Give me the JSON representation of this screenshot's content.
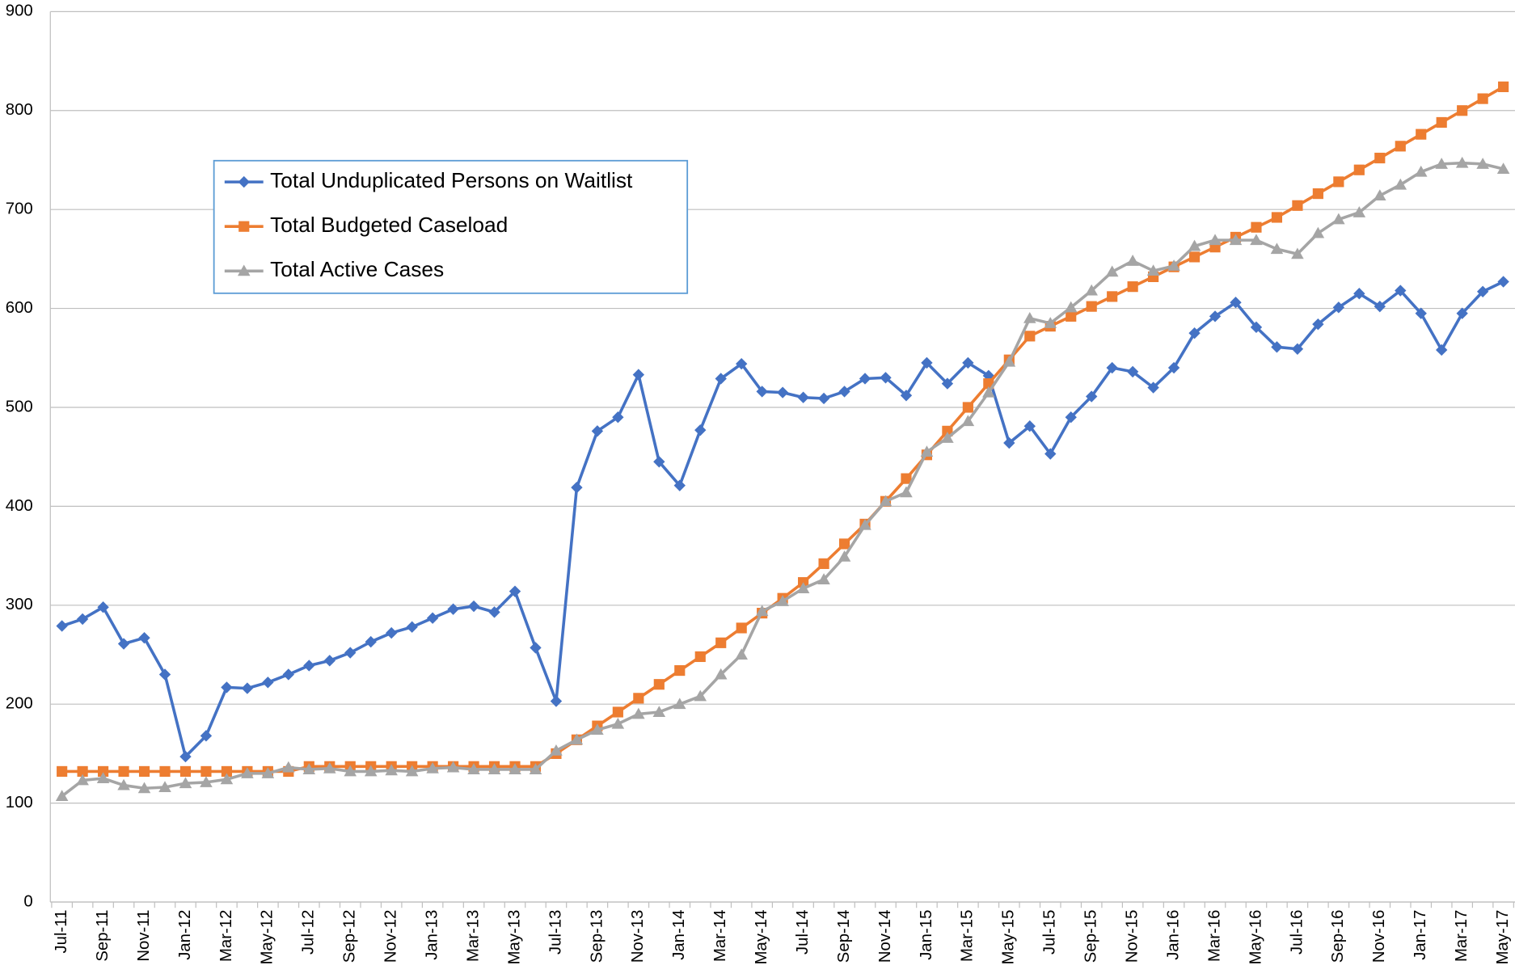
{
  "chart_data": {
    "type": "line",
    "categories": [
      "Jul-11",
      null,
      "Sep-11",
      null,
      "Nov-11",
      null,
      "Jan-12",
      null,
      "Mar-12",
      null,
      "May-12",
      null,
      "Jul-12",
      null,
      "Sep-12",
      null,
      "Nov-12",
      null,
      "Jan-13",
      null,
      "Mar-13",
      null,
      "May-13",
      null,
      "Jul-13",
      null,
      "Sep-13",
      null,
      "Nov-13",
      null,
      "Jan-14",
      null,
      "Mar-14",
      null,
      "May-14",
      null,
      "Jul-14",
      null,
      "Sep-14",
      null,
      "Nov-14",
      null,
      "Jan-15",
      null,
      "Mar-15",
      null,
      "May-15",
      null,
      "Jul-15",
      null,
      "Sep-15",
      null,
      "Nov-15",
      null,
      "Jan-16",
      null,
      "Mar-16",
      null,
      "May-16",
      null,
      "Jul-16",
      null,
      "Sep-16",
      null,
      "Nov-16",
      null,
      "Jan-17",
      null,
      "Mar-17",
      null,
      "May-17"
    ],
    "series": [
      {
        "name": "Total Unduplicated Persons on Waitlist",
        "color": "#4472c4",
        "marker": "diamond",
        "values": [
          279,
          286,
          298,
          261,
          267,
          230,
          147,
          168,
          217,
          216,
          222,
          230,
          239,
          244,
          252,
          263,
          272,
          278,
          287,
          296,
          299,
          293,
          314,
          257,
          203,
          419,
          476,
          490,
          533,
          445,
          421,
          477,
          529,
          544,
          516,
          515,
          510,
          509,
          516,
          529,
          530,
          512,
          545,
          524,
          545,
          532,
          464,
          481,
          453,
          490,
          511,
          540,
          536,
          520,
          540,
          575,
          592,
          606,
          581,
          561,
          559,
          584,
          601,
          615,
          602,
          618,
          595,
          558,
          595,
          617,
          627
        ]
      },
      {
        "name": "Total Budgeted Caseload",
        "color": "#ed7d31",
        "marker": "square",
        "values": [
          132,
          132,
          132,
          132,
          132,
          132,
          132,
          132,
          132,
          132,
          132,
          132,
          137,
          137,
          137,
          137,
          137,
          137,
          137,
          137,
          137,
          137,
          137,
          137,
          150,
          164,
          178,
          192,
          206,
          220,
          234,
          248,
          262,
          277,
          292,
          307,
          323,
          342,
          362,
          382,
          405,
          428,
          452,
          476,
          500,
          524,
          548,
          572,
          582,
          592,
          602,
          612,
          622,
          632,
          642,
          652,
          662,
          672,
          682,
          692,
          704,
          716,
          728,
          740,
          752,
          764,
          776,
          788,
          800,
          812,
          824
        ]
      },
      {
        "name": "Total Active Cases",
        "color": "#a5a5a5",
        "marker": "triangle",
        "values": [
          107,
          123,
          125,
          118,
          115,
          116,
          120,
          121,
          124,
          130,
          130,
          136,
          134,
          135,
          132,
          132,
          133,
          132,
          135,
          136,
          134,
          134,
          134,
          134,
          153,
          164,
          174,
          180,
          190,
          192,
          200,
          208,
          230,
          250,
          294,
          304,
          317,
          326,
          349,
          381,
          405,
          414,
          455,
          469,
          486,
          515,
          546,
          590,
          585,
          601,
          618,
          637,
          648,
          638,
          643,
          663,
          669,
          669,
          669,
          660,
          655,
          676,
          690,
          697,
          714,
          725,
          738,
          746,
          747,
          746,
          741
        ]
      }
    ],
    "ylim": [
      0,
      900
    ],
    "yticks": [
      0,
      100,
      200,
      300,
      400,
      500,
      600,
      700,
      800,
      900
    ],
    "grid": true,
    "legend": "upper left"
  }
}
